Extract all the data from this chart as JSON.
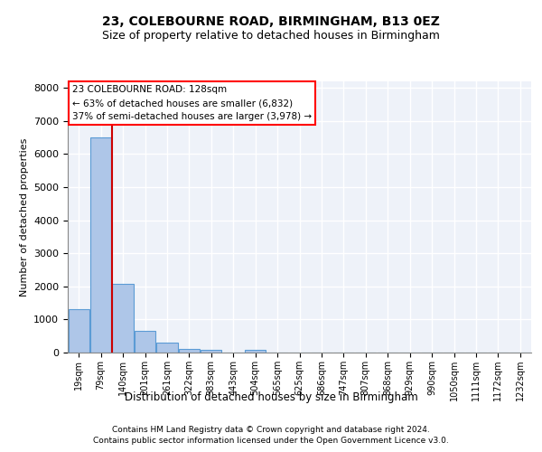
{
  "title_line1": "23, COLEBOURNE ROAD, BIRMINGHAM, B13 0EZ",
  "title_line2": "Size of property relative to detached houses in Birmingham",
  "xlabel": "Distribution of detached houses by size in Birmingham",
  "ylabel": "Number of detached properties",
  "footer_line1": "Contains HM Land Registry data © Crown copyright and database right 2024.",
  "footer_line2": "Contains public sector information licensed under the Open Government Licence v3.0.",
  "bin_labels": [
    "19sqm",
    "79sqm",
    "140sqm",
    "201sqm",
    "261sqm",
    "322sqm",
    "383sqm",
    "443sqm",
    "504sqm",
    "565sqm",
    "625sqm",
    "686sqm",
    "747sqm",
    "807sqm",
    "868sqm",
    "929sqm",
    "990sqm",
    "1050sqm",
    "1111sqm",
    "1172sqm",
    "1232sqm"
  ],
  "bar_values": [
    1300,
    6500,
    2080,
    650,
    290,
    115,
    75,
    0,
    75,
    0,
    0,
    0,
    0,
    0,
    0,
    0,
    0,
    0,
    0,
    0,
    0
  ],
  "bar_color": "#aec6e8",
  "bar_edge_color": "#5b9bd5",
  "annotation_text_line1": "23 COLEBOURNE ROAD: 128sqm",
  "annotation_text_line2": "← 63% of detached houses are smaller (6,832)",
  "annotation_text_line3": "37% of semi-detached houses are larger (3,978) →",
  "annotation_box_color": "white",
  "annotation_box_edge_color": "red",
  "vline_color": "#cc0000",
  "vline_x": 1.49,
  "ylim_max": 8200,
  "background_color": "#eef2f9",
  "grid_color": "white"
}
